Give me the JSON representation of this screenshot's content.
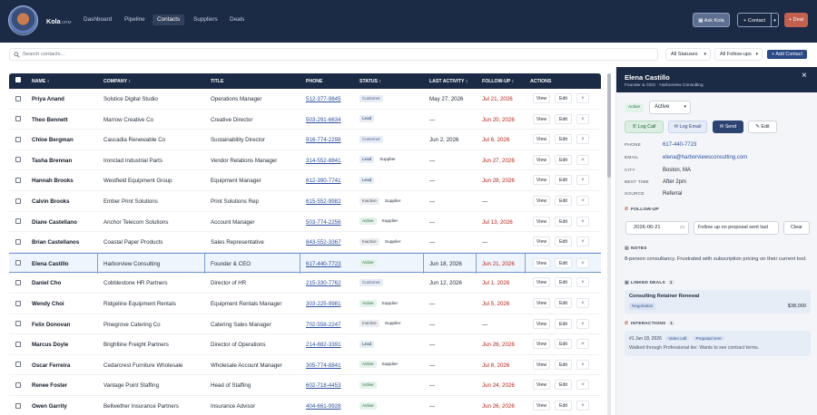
{
  "app": {
    "brand": "Kola",
    "brand_suffix": "CRM",
    "nav": [
      {
        "label": "Dashboard"
      },
      {
        "label": "Pipeline"
      },
      {
        "label": "Contacts"
      },
      {
        "label": "Suppliers"
      },
      {
        "label": "Deals"
      }
    ],
    "ask_label": "Ask Kola",
    "contact_btn_label": "+ Contact",
    "deal_btn_label": "+ Deal"
  },
  "toolbar": {
    "search_placeholder": "Search contacts...",
    "status_filter": "All Statuses",
    "followup_filter": "All Follow-ups",
    "add_contact_label": "+ Add Contact"
  },
  "table": {
    "headers": {
      "name": "NAME ↕",
      "company": "COMPANY ↕",
      "title": "TITLE",
      "phone": "PHONE",
      "status": "STATUS ↕",
      "last_activity": "LAST ACTIVITY ↕",
      "followup": "FOLLOW-UP ↕",
      "actions": "ACTIONS"
    },
    "view_label": "View",
    "edit_label": "Edit",
    "delete_glyph": "×",
    "rows": [
      {
        "name": "Priya Anand",
        "company": "Solstice Digital Studio",
        "title": "Operations Manager",
        "phone": "512-377-9845",
        "status": "Customer",
        "supplier": "",
        "activity": "May 27, 2026",
        "followup": "Jul 21, 2026",
        "overdue": true
      },
      {
        "name": "Theo Bennett",
        "company": "Marrow Creative Co",
        "title": "Creative Director",
        "phone": "503-291-6634",
        "status": "Lead",
        "supplier": "",
        "activity": "—",
        "followup": "Jun 20, 2026",
        "overdue": true
      },
      {
        "name": "Chloe Bergman",
        "company": "Cascadia Renewable Co",
        "title": "Sustainability Director",
        "phone": "916-774-2298",
        "status": "Customer",
        "supplier": "",
        "activity": "Jun 2, 2026",
        "followup": "Jul 6, 2026",
        "overdue": true
      },
      {
        "name": "Tasha Brennan",
        "company": "Ironclad Industrial Parts",
        "title": "Vendor Relations Manager",
        "phone": "314-552-8841",
        "status": "Lead",
        "supplier": "Supplier",
        "activity": "—",
        "followup": "Jun 27, 2026",
        "overdue": true
      },
      {
        "name": "Hannah Brooks",
        "company": "Westfield Equipment Group",
        "title": "Equipment Manager",
        "phone": "612-390-7741",
        "status": "Lead",
        "supplier": "",
        "activity": "—",
        "followup": "Jun 28, 2026",
        "overdue": true
      },
      {
        "name": "Calvin Brooks",
        "company": "Ember Print Solutions",
        "title": "Print Solutions Rep",
        "phone": "615-552-9982",
        "status": "Inactive",
        "supplier": "Supplier",
        "activity": "—",
        "followup": "—",
        "overdue": false
      },
      {
        "name": "Diane Castellano",
        "company": "Anchor Telecom Solutions",
        "title": "Account Manager",
        "phone": "503-774-2256",
        "status": "Active",
        "supplier": "Supplier",
        "activity": "—",
        "followup": "Jul 13, 2026",
        "overdue": true
      },
      {
        "name": "Brian Castellanos",
        "company": "Coastal Paper Products",
        "title": "Sales Representative",
        "phone": "843-552-3367",
        "status": "Inactive",
        "supplier": "Supplier",
        "activity": "—",
        "followup": "—",
        "overdue": false
      },
      {
        "name": "Elena Castillo",
        "company": "Harborview Consulting",
        "title": "Founder & CEO",
        "phone": "617-440-7723",
        "status": "Active",
        "supplier": "",
        "activity": "Jun 18, 2026",
        "followup": "Jun 21, 2026",
        "overdue": true
      },
      {
        "name": "Daniel Cho",
        "company": "Cobblestone HR Partners",
        "title": "Director of HR",
        "phone": "215-330-7762",
        "status": "Customer",
        "supplier": "",
        "activity": "Jun 12, 2026",
        "followup": "Jul 1, 2026",
        "overdue": true
      },
      {
        "name": "Wendy Choi",
        "company": "Ridgeline Equipment Rentals",
        "title": "Equipment Rentals Manager",
        "phone": "303-225-9981",
        "status": "Active",
        "supplier": "Supplier",
        "activity": "—",
        "followup": "Jul 5, 2026",
        "overdue": true
      },
      {
        "name": "Felix Donovan",
        "company": "Pinegrove Catering Co",
        "title": "Catering Sales Manager",
        "phone": "702-558-2247",
        "status": "Inactive",
        "supplier": "Supplier",
        "activity": "—",
        "followup": "—",
        "overdue": false
      },
      {
        "name": "Marcus Doyle",
        "company": "Brightline Freight Partners",
        "title": "Director of Operations",
        "phone": "214-882-3391",
        "status": "Lead",
        "supplier": "",
        "activity": "—",
        "followup": "Jun 26, 2026",
        "overdue": true
      },
      {
        "name": "Oscar Ferreira",
        "company": "Cedarcrest Furniture Wholesale",
        "title": "Wholesale Account Manager",
        "phone": "305-774-8841",
        "status": "Active",
        "supplier": "Supplier",
        "activity": "—",
        "followup": "Jul 8, 2026",
        "overdue": true
      },
      {
        "name": "Renee Foster",
        "company": "Vantage Point Staffing",
        "title": "Head of Staffing",
        "phone": "602-718-4453",
        "status": "Active",
        "supplier": "",
        "activity": "—",
        "followup": "Jun 24, 2026",
        "overdue": true
      },
      {
        "name": "Owen Garrity",
        "company": "Bellwether Insurance Partners",
        "title": "Insurance Advisor",
        "phone": "404-661-9928",
        "status": "Active",
        "supplier": "",
        "activity": "—",
        "followup": "Jun 26, 2026",
        "overdue": true
      }
    ]
  },
  "status_colors": {
    "Customer": "#e7ecf5",
    "Lead": "#e8edf4",
    "Inactive": "#eceef1",
    "Active": "#e4f3e9"
  },
  "detail": {
    "name": "Elena Castillo",
    "subtitle": "Founder & CEO · Harborview Consulting",
    "status_badge": "Active",
    "status_select": "Active",
    "buttons": {
      "log_call": "Log Call",
      "log_email": "Log Email",
      "send": "Send",
      "edit": "Edit"
    },
    "fields": [
      {
        "label": "PHONE",
        "value": "617-440-7723",
        "link": true
      },
      {
        "label": "EMAIL",
        "value": "elena@harborviewsconsulting.com",
        "link": true
      },
      {
        "label": "CITY",
        "value": "Boston, MA",
        "link": false
      },
      {
        "label": "BEST TIME",
        "value": "After 2pm",
        "link": false
      },
      {
        "label": "SOURCE",
        "value": "Referral",
        "link": false
      }
    ],
    "followup": {
      "heading": "FOLLOW-UP",
      "date": "2026-06-21",
      "note": "Follow up on proposal sent last",
      "clear": "Clear"
    },
    "notes": {
      "heading": "NOTES",
      "text": "8-person consultancy. Frustrated with subscription pricing on their current tool."
    },
    "deals": {
      "heading": "LINKED DEALS",
      "count": "1",
      "title": "Consulting Retainer Renewal",
      "stage": "Negotiation",
      "amount": "$38,000"
    },
    "interactions": {
      "heading": "INTERACTIONS",
      "count": "1",
      "ref": "#1",
      "date": "Jun 18, 2026",
      "type": "Video call",
      "tag": "Proposal sent",
      "text": "Walked through Professional tier. Wants to see contract terms."
    }
  }
}
